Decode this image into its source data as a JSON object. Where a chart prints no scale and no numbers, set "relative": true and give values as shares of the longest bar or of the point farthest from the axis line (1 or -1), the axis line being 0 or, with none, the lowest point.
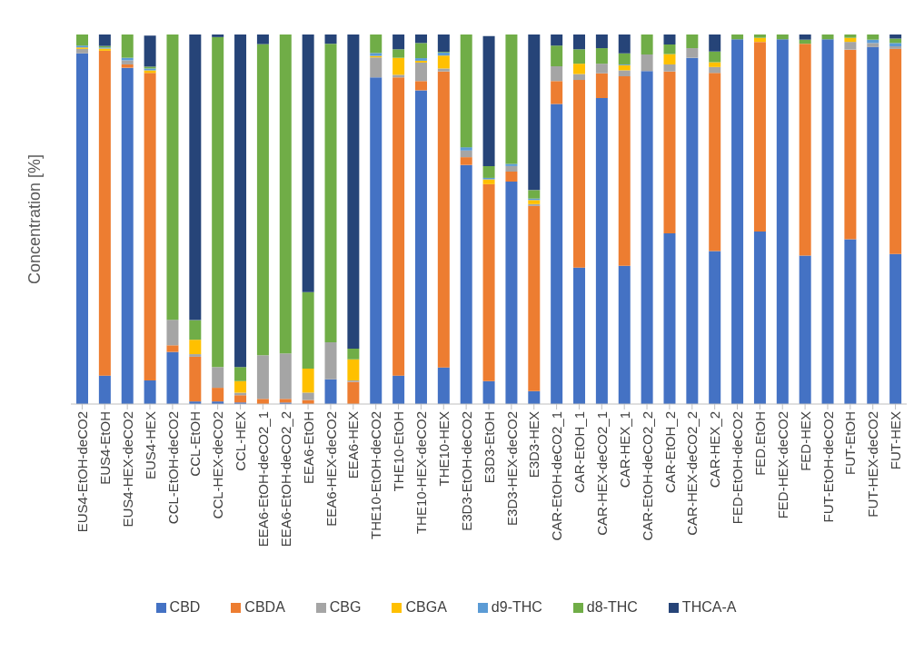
{
  "chart_data": {
    "type": "bar",
    "ylabel": "Concentration  [%]",
    "relative": true,
    "stacked": true,
    "legend": "bottom",
    "categories": [
      "EUS4-EtOH-deCO2",
      "EUS4-EtOH",
      "EUS4-HEX-deCO2",
      "EUS4-HEX",
      "CCL-EtOH-deCO2",
      "CCL-EtOH",
      "CCL-HEX-deCO2",
      "CCL-HEX",
      "EEA6-EtOH-deCO2_1",
      "EEA6-EtOH-deCO2_2",
      "EEA6-EtOH",
      "EEA6-HEX-deCO2",
      "EEA6-HEX",
      "THE10-EtOH-deCO2",
      "THE10-EtOH",
      "THE10-HEX-deCO2",
      "THE10-HEX",
      "E3D3-EtOH-deCO2",
      "E3D3-EtOH",
      "E3D3-HEX-deCO2",
      "E3D3-HEX",
      "CAR-EtOH-deCO2_1",
      "CAR-EtOH_1",
      "CAR-HEX-deCO2_1",
      "CAR-HEX_1",
      "CAR-EtOH-deCO2_2",
      "CAR-EtOH_2",
      "CAR-HEX-deCO2_2",
      "CAR-HEX_2",
      "FED-EtOH-deCO2",
      "FED.EtOH",
      "FED-HEX-deCO2",
      "FED-HEX",
      "FUT-EtOH-deCO2",
      "FUT-EtOH",
      "FUT-HEX-deCO2",
      "FUT-HEX"
    ],
    "series": [
      {
        "name": "CBD",
        "color": "#4472c4",
        "values": [
          0.949,
          0.077,
          0.91,
          0.064,
          0.141,
          0.007,
          0.007,
          0.004,
          0,
          0.004,
          0,
          0.067,
          0,
          0.884,
          0.077,
          0.849,
          0.099,
          0.647,
          0.062,
          0.602,
          0.035,
          0.812,
          0.369,
          0.828,
          0.374,
          0.901,
          0.462,
          0.937,
          0.414,
          0.987,
          0.467,
          0.987,
          0.402,
          0.987,
          0.446,
          0.966,
          0.406
        ]
      },
      {
        "name": "CBDA",
        "color": "#ed7d31",
        "values": [
          0,
          0.879,
          0.009,
          0.832,
          0.018,
          0.121,
          0.037,
          0.02,
          0.014,
          0.01,
          0.011,
          0,
          0.06,
          0,
          0.807,
          0.025,
          0.801,
          0.021,
          0.533,
          0.027,
          0.501,
          0.062,
          0.508,
          0.067,
          0.513,
          0,
          0.438,
          0,
          0.482,
          0,
          0.513,
          0,
          0.573,
          0,
          0.513,
          0,
          0.555
        ]
      },
      {
        "name": "CBG",
        "color": "#a5a5a5",
        "values": [
          0.012,
          0,
          0.011,
          null,
          0.069,
          0.007,
          0.056,
          0.007,
          0.118,
          0.123,
          0.02,
          0.1,
          0.004,
          0.054,
          0.007,
          0.05,
          0.008,
          0.018,
          null,
          0.015,
          0.005,
          0.04,
          0.016,
          0.026,
          0.016,
          0.045,
          0.019,
          0.026,
          0.016,
          0,
          0,
          0,
          0,
          0,
          0.021,
          0.011,
          0.007
        ]
      },
      {
        "name": "CBGA",
        "color": "#ffc000",
        "values": [
          0.004,
          0.006,
          0,
          0.007,
          0,
          0.039,
          0,
          0.031,
          0,
          0,
          0.065,
          0,
          0.057,
          0.004,
          0.046,
          0.005,
          0.035,
          0,
          0.013,
          0,
          0.011,
          0,
          0.028,
          0,
          0.014,
          0,
          0.028,
          0,
          0.013,
          0,
          0.011,
          0,
          0,
          0,
          0.011,
          0,
          0
        ]
      },
      {
        "name": "d9-THC",
        "color": "#5b9bd5",
        "values": [
          0.005,
          0.003,
          0.007,
          0.005,
          0,
          0,
          0,
          0,
          0,
          0,
          0,
          0,
          0,
          0.008,
          0,
          0.007,
          0.008,
          0.009,
          0.004,
          0.006,
          0.004,
          0,
          0,
          0,
          0.002,
          0,
          0,
          0,
          0,
          0,
          0,
          0,
          0,
          0,
          0,
          0.009,
          0.009
        ]
      },
      {
        "name": "d8-THC",
        "color": "#70ad47",
        "values": [
          0.03,
          0.004,
          0.063,
          0.005,
          0.772,
          0.053,
          0.893,
          0.038,
          0.842,
          0.863,
          0.207,
          0.808,
          0.029,
          0.05,
          0.023,
          0.041,
          0.002,
          0.305,
          0.032,
          0.35,
          0.023,
          0.056,
          0.039,
          0.042,
          0.03,
          0.054,
          0.026,
          0.037,
          0.029,
          0.013,
          0.009,
          0.013,
          0.011,
          0.013,
          0.009,
          0.014,
          0.012
        ]
      },
      {
        "name": "THCA-A",
        "color": "#264478",
        "values": [
          0,
          0.031,
          0,
          0.084,
          0,
          0.773,
          0.007,
          0.9,
          0.026,
          0,
          0.697,
          0.025,
          0.85,
          0,
          0.04,
          0.023,
          0.047,
          0,
          0.352,
          0,
          0.421,
          0.03,
          0.04,
          0.037,
          0.051,
          0,
          0.027,
          0,
          0.046,
          0,
          0,
          0,
          0.014,
          0,
          0,
          0,
          0.011
        ]
      }
    ]
  }
}
